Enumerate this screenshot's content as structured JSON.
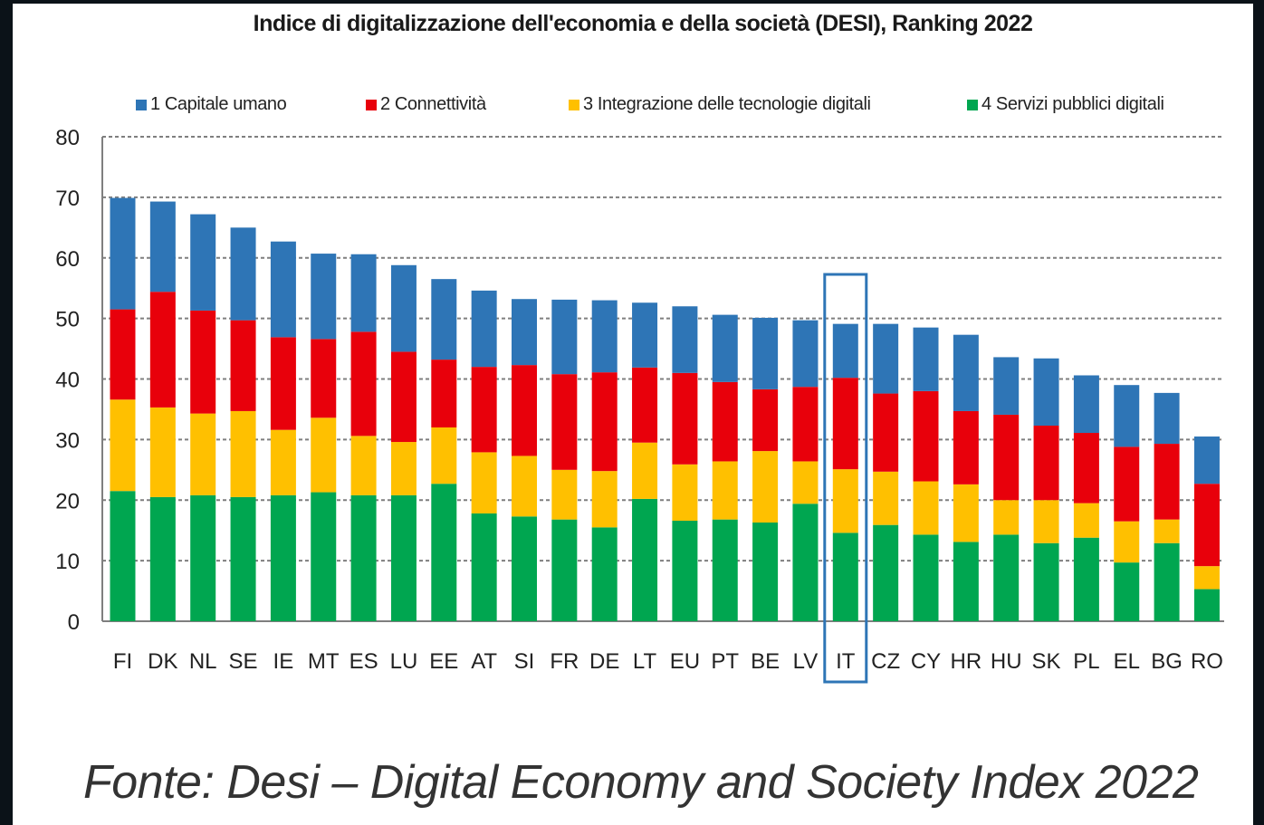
{
  "chart_data": {
    "type": "bar",
    "stacked": true,
    "title": "Indice di digitalizzazione dell'economia e della società (DESI), Ranking 2022",
    "categories": [
      "FI",
      "DK",
      "NL",
      "SE",
      "IE",
      "MT",
      "ES",
      "LU",
      "EE",
      "AT",
      "SI",
      "FR",
      "DE",
      "LT",
      "EU",
      "PT",
      "BE",
      "LV",
      "IT",
      "CZ",
      "CY",
      "HR",
      "HU",
      "SK",
      "PL",
      "EL",
      "BG",
      "RO"
    ],
    "series": [
      {
        "name": "4 Servizi pubblici digitali",
        "color": "#00a650",
        "values": [
          21.5,
          20.5,
          20.8,
          20.5,
          20.8,
          21.3,
          20.8,
          20.8,
          22.7,
          17.8,
          17.3,
          16.8,
          15.5,
          20.2,
          16.6,
          16.8,
          16.3,
          19.4,
          14.6,
          15.9,
          14.3,
          13.1,
          14.3,
          12.9,
          13.8,
          9.7,
          12.9,
          5.3
        ]
      },
      {
        "name": "3 Integrazione delle tecnologie digitali",
        "color": "#ffc000",
        "values": [
          15.1,
          14.8,
          13.5,
          14.2,
          10.8,
          12.3,
          9.8,
          8.8,
          9.3,
          10.1,
          10.0,
          8.2,
          9.3,
          9.3,
          9.3,
          9.6,
          11.8,
          7.0,
          10.5,
          8.8,
          8.8,
          9.5,
          5.7,
          7.1,
          5.7,
          6.8,
          3.9,
          3.8
        ]
      },
      {
        "name": "2 Connettività",
        "color": "#e8000b",
        "values": [
          14.9,
          19.1,
          17.0,
          15.0,
          15.3,
          13.0,
          17.2,
          14.9,
          11.2,
          14.1,
          15.0,
          15.8,
          16.3,
          12.4,
          15.1,
          13.1,
          10.2,
          12.3,
          15.1,
          12.9,
          14.9,
          12.1,
          14.1,
          12.3,
          11.6,
          12.3,
          12.5,
          13.6
        ]
      },
      {
        "name": "1 Capitale umano",
        "color": "#2e75b6",
        "values": [
          18.4,
          14.9,
          15.9,
          15.3,
          15.8,
          14.1,
          12.8,
          14.3,
          13.3,
          12.6,
          10.9,
          12.3,
          11.9,
          10.7,
          11.0,
          11.1,
          11.8,
          11.0,
          8.9,
          11.5,
          10.5,
          12.6,
          9.5,
          11.1,
          9.5,
          10.2,
          8.4,
          7.8
        ]
      }
    ],
    "ylim": [
      0,
      80
    ],
    "yticks": [
      0,
      10,
      20,
      30,
      40,
      50,
      60,
      70,
      80
    ],
    "grid": true,
    "legend_position": "top",
    "highlighted_category": "IT"
  },
  "source_caption": "Fonte: Desi – Digital Economy and Society Index 2022"
}
